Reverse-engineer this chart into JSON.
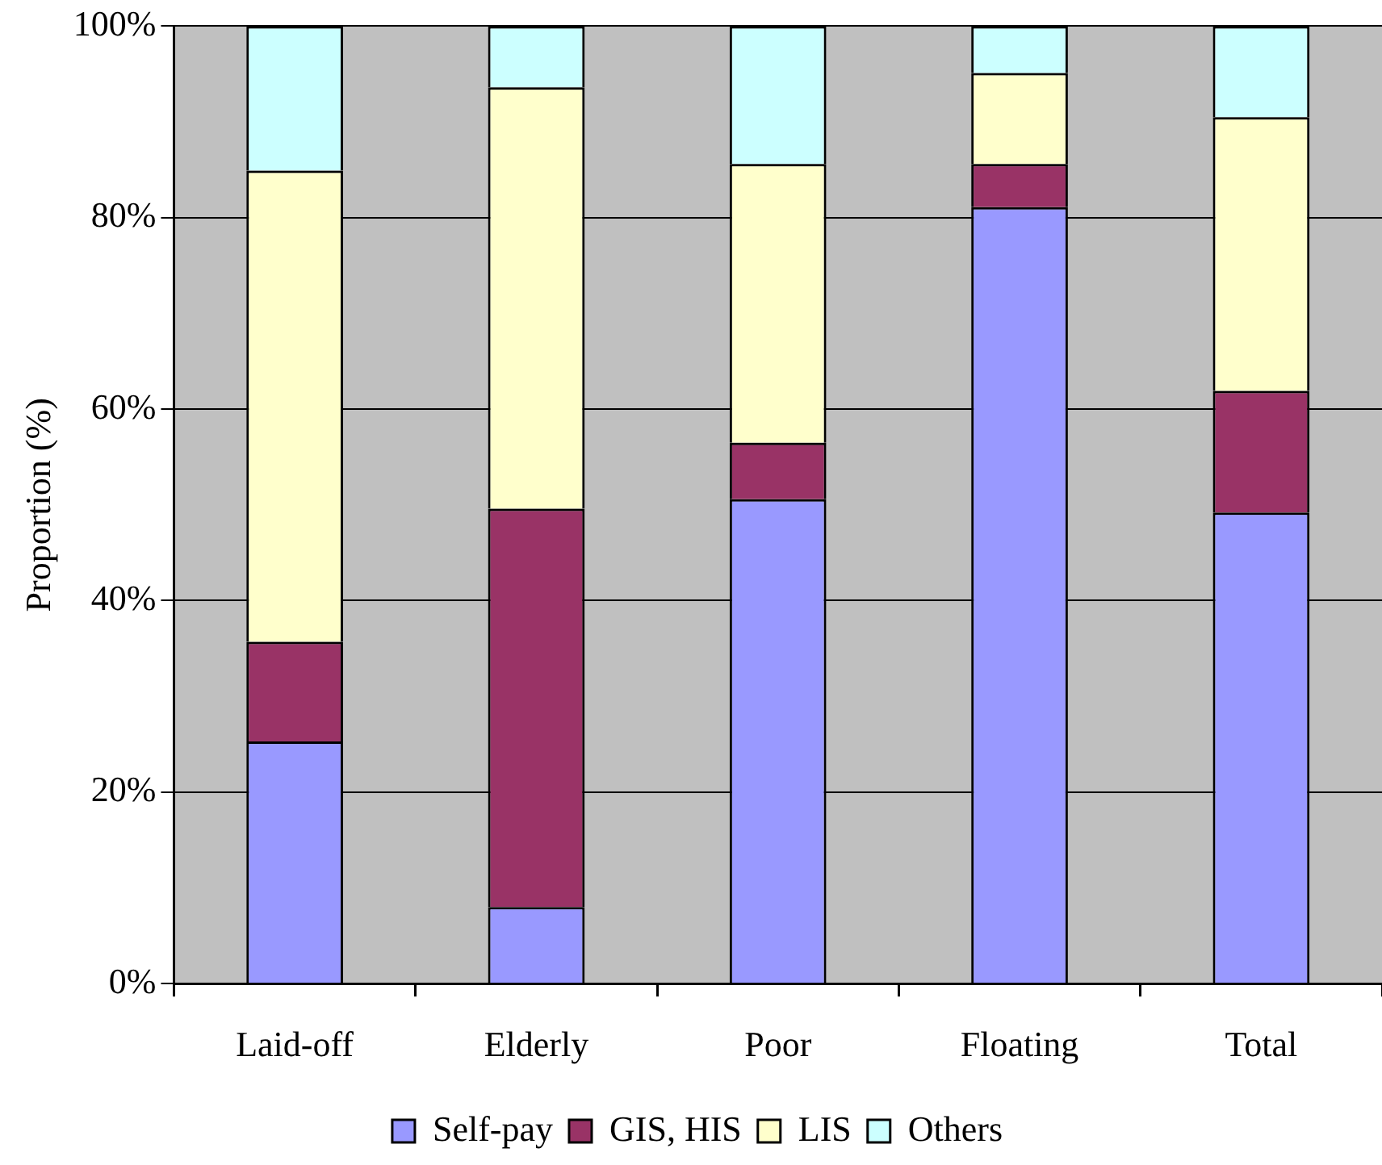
{
  "chart_data": {
    "type": "bar",
    "stacked": true,
    "ylabel": "Proportion (%)",
    "categories": [
      "Laid-off",
      "Elderly",
      "Poor",
      "Floating",
      "Total"
    ],
    "series": [
      {
        "name": "Self-pay",
        "color": "#9999ff",
        "values": [
          25.3,
          8.0,
          50.6,
          81.1,
          49.2
        ]
      },
      {
        "name": "GIS, HIS",
        "color": "#993366",
        "values": [
          10.4,
          41.6,
          5.9,
          4.5,
          12.7
        ]
      },
      {
        "name": "LIS",
        "color": "#ffffcc",
        "values": [
          49.2,
          44.0,
          29.1,
          9.5,
          28.6
        ]
      },
      {
        "name": "Others",
        "color": "#ccffff",
        "values": [
          15.1,
          6.4,
          14.4,
          4.9,
          9.5
        ]
      }
    ],
    "ylim": [
      0,
      100
    ],
    "yticks": [
      {
        "value": 0,
        "label": "0%"
      },
      {
        "value": 20,
        "label": "20%"
      },
      {
        "value": 40,
        "label": "40%"
      },
      {
        "value": 60,
        "label": "60%"
      },
      {
        "value": 80,
        "label": "80%"
      },
      {
        "value": 100,
        "label": "100%"
      }
    ],
    "grid": "y",
    "legend": "bottom"
  }
}
